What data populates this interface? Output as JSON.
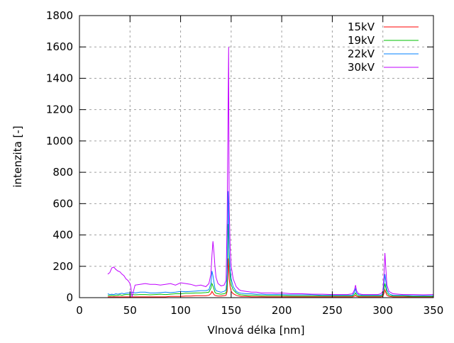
{
  "chart_data": {
    "type": "line",
    "title": "",
    "xlabel": "Vlnová délka [nm]",
    "ylabel": "intenzita [-]",
    "xlim": [
      0,
      350
    ],
    "ylim": [
      0,
      1800
    ],
    "xticks": [
      0,
      50,
      100,
      150,
      200,
      250,
      300,
      350
    ],
    "yticks": [
      0,
      200,
      400,
      600,
      800,
      1000,
      1200,
      1400,
      1600,
      1800
    ],
    "grid": true,
    "legend_position": "top-right",
    "x": [
      28,
      30,
      32,
      34,
      36,
      38,
      40,
      42,
      44,
      46,
      48,
      50,
      51,
      52,
      55,
      60,
      65,
      70,
      75,
      80,
      85,
      90,
      95,
      100,
      105,
      110,
      115,
      120,
      125,
      128,
      130,
      131,
      132,
      133,
      134,
      135,
      137,
      140,
      143,
      145,
      146,
      147,
      147.5,
      148,
      149,
      150,
      152,
      155,
      158,
      160,
      165,
      170,
      175,
      180,
      185,
      190,
      195,
      200,
      210,
      220,
      230,
      240,
      250,
      260,
      265,
      270,
      272,
      273,
      274,
      276,
      280,
      290,
      295,
      298,
      300,
      301,
      302,
      303,
      304,
      306,
      310,
      320,
      330,
      340,
      350
    ],
    "series": [
      {
        "name": "15kV",
        "color": "#ff0000",
        "values": [
          5,
          5,
          5,
          5,
          5,
          5,
          5,
          5,
          5,
          5,
          5,
          5,
          5,
          5,
          5,
          5,
          5,
          5,
          5,
          5,
          5,
          8,
          8,
          8,
          10,
          10,
          12,
          12,
          12,
          15,
          25,
          40,
          30,
          20,
          15,
          12,
          10,
          10,
          12,
          15,
          40,
          250,
          200,
          120,
          70,
          40,
          25,
          15,
          10,
          8,
          8,
          6,
          6,
          6,
          5,
          5,
          5,
          5,
          5,
          5,
          5,
          5,
          5,
          5,
          5,
          5,
          10,
          15,
          8,
          5,
          5,
          5,
          5,
          5,
          8,
          25,
          50,
          30,
          15,
          8,
          5,
          5,
          5,
          5,
          5
        ]
      },
      {
        "name": "19kV",
        "color": "#00c000",
        "values": [
          15,
          12,
          15,
          12,
          15,
          15,
          18,
          15,
          18,
          20,
          20,
          18,
          18,
          20,
          18,
          20,
          20,
          18,
          20,
          22,
          20,
          22,
          25,
          25,
          28,
          28,
          30,
          30,
          32,
          35,
          60,
          90,
          75,
          55,
          35,
          28,
          25,
          22,
          25,
          30,
          80,
          470,
          420,
          250,
          140,
          80,
          50,
          30,
          20,
          18,
          15,
          15,
          15,
          12,
          12,
          12,
          12,
          12,
          10,
          10,
          10,
          10,
          10,
          10,
          10,
          10,
          20,
          30,
          18,
          10,
          10,
          10,
          10,
          10,
          15,
          50,
          90,
          60,
          30,
          15,
          10,
          10,
          8,
          8,
          8
        ]
      },
      {
        "name": "22kV",
        "color": "#0080ff",
        "values": [
          25,
          20,
          22,
          20,
          25,
          22,
          25,
          28,
          25,
          28,
          30,
          30,
          30,
          35,
          30,
          35,
          35,
          30,
          30,
          32,
          35,
          32,
          35,
          40,
          38,
          40,
          42,
          45,
          45,
          50,
          90,
          170,
          140,
          100,
          60,
          45,
          40,
          35,
          40,
          50,
          150,
          680,
          550,
          300,
          180,
          120,
          70,
          40,
          30,
          28,
          25,
          25,
          22,
          22,
          20,
          20,
          20,
          20,
          18,
          18,
          18,
          15,
          15,
          15,
          15,
          15,
          35,
          60,
          30,
          18,
          15,
          15,
          15,
          15,
          25,
          80,
          150,
          100,
          50,
          25,
          15,
          15,
          12,
          12,
          12
        ]
      },
      {
        "name": "30kV",
        "color": "#c000ff",
        "values": [
          150,
          160,
          190,
          195,
          180,
          170,
          165,
          150,
          140,
          120,
          110,
          90,
          60,
          5,
          80,
          85,
          90,
          85,
          85,
          80,
          85,
          90,
          80,
          95,
          90,
          85,
          75,
          80,
          70,
          90,
          150,
          270,
          360,
          290,
          200,
          130,
          90,
          75,
          80,
          110,
          500,
          1230,
          1600,
          600,
          320,
          200,
          120,
          70,
          50,
          45,
          40,
          35,
          35,
          30,
          30,
          30,
          28,
          30,
          25,
          25,
          22,
          22,
          20,
          20,
          20,
          25,
          50,
          80,
          45,
          25,
          20,
          20,
          20,
          25,
          40,
          120,
          285,
          180,
          80,
          40,
          25,
          20,
          20,
          18,
          20
        ]
      }
    ]
  }
}
